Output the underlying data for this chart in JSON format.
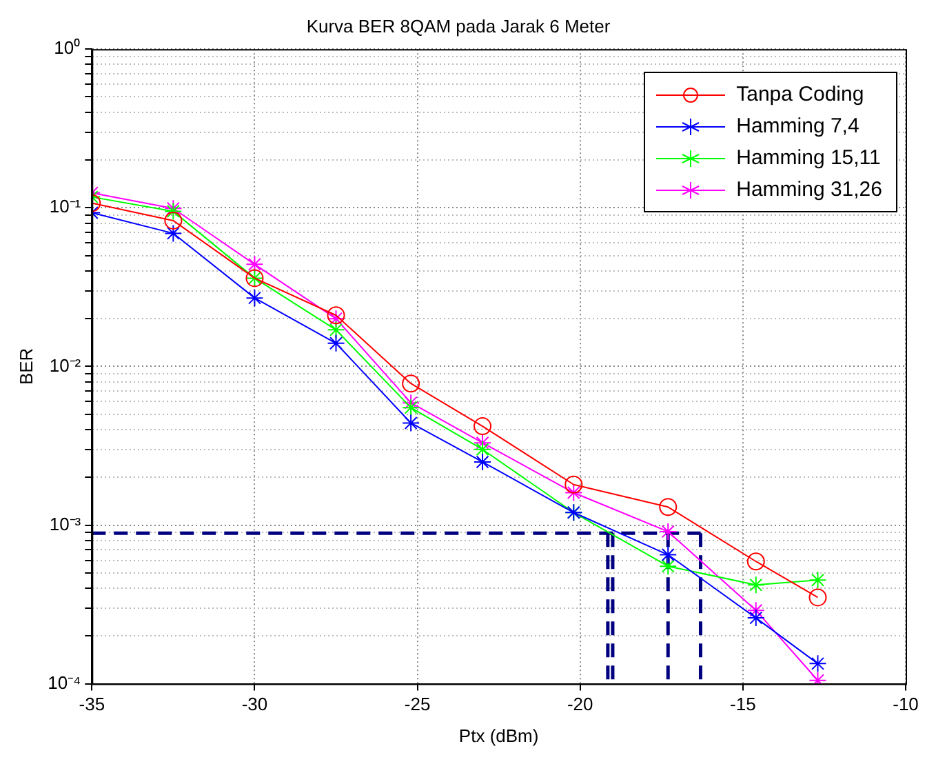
{
  "chart_data": {
    "type": "line",
    "title": "Kurva BER 8QAM pada Jarak 6 Meter",
    "xlabel": "Ptx (dBm)",
    "ylabel": "BER",
    "log": "y",
    "grid": true,
    "legend": "top right",
    "xlim": [
      -35,
      -10
    ],
    "xticks": [
      -35,
      -30,
      -25,
      -20,
      -15,
      -10
    ],
    "ylim": [
      0.0001,
      1
    ],
    "yticks": [
      {
        "value": 0.0001,
        "label": "10⁻⁴"
      },
      {
        "value": 0.0002,
        "label": null
      },
      {
        "value": 0.0003,
        "label": null
      },
      {
        "value": 0.0004,
        "label": null
      },
      {
        "value": 0.0005,
        "label": null
      },
      {
        "value": 0.0006,
        "label": null
      },
      {
        "value": 0.0007,
        "label": null
      },
      {
        "value": 0.0008,
        "label": null
      },
      {
        "value": 0.0009,
        "label": null
      },
      {
        "value": 0.001,
        "label": "10⁻³"
      },
      {
        "value": 0.002,
        "label": null
      },
      {
        "value": 0.003,
        "label": null
      },
      {
        "value": 0.004,
        "label": null
      },
      {
        "value": 0.005,
        "label": null
      },
      {
        "value": 0.006,
        "label": null
      },
      {
        "value": 0.007,
        "label": null
      },
      {
        "value": 0.008,
        "label": null
      },
      {
        "value": 0.009,
        "label": null
      },
      {
        "value": 0.01,
        "label": "10⁻²"
      },
      {
        "value": 0.02,
        "label": null
      },
      {
        "value": 0.03,
        "label": null
      },
      {
        "value": 0.04,
        "label": null
      },
      {
        "value": 0.05,
        "label": null
      },
      {
        "value": 0.06,
        "label": null
      },
      {
        "value": 0.07,
        "label": null
      },
      {
        "value": 0.08,
        "label": null
      },
      {
        "value": 0.09,
        "label": null
      },
      {
        "value": 0.1,
        "label": "10⁻¹"
      },
      {
        "value": 0.2,
        "label": null
      },
      {
        "value": 0.3,
        "label": null
      },
      {
        "value": 0.4,
        "label": null
      },
      {
        "value": 0.5,
        "label": null
      },
      {
        "value": 0.6,
        "label": null
      },
      {
        "value": 0.7,
        "label": null
      },
      {
        "value": 0.8,
        "label": null
      },
      {
        "value": 0.9,
        "label": null
      },
      {
        "value": 1,
        "label": "10⁰"
      }
    ],
    "x": [
      -35,
      -32.5,
      -30,
      -27.5,
      -25.2,
      -23,
      -20.2,
      -17.3,
      -14.6,
      -12.7
    ],
    "series": [
      {
        "name": "Tanpa Coding",
        "color": "#ff0000",
        "marker": "circle",
        "values": [
          0.107,
          0.083,
          0.036,
          0.021,
          0.0078,
          0.0042,
          0.0018,
          0.0013,
          0.00059,
          0.00035
        ]
      },
      {
        "name": "Hamming 7,4",
        "color": "#0000ff",
        "marker": "cross",
        "values": [
          0.093,
          0.069,
          0.027,
          0.014,
          0.0044,
          0.0025,
          0.0012,
          0.00065,
          0.00026,
          0.000134
        ]
      },
      {
        "name": "Hamming 15,11",
        "color": "#00ff00",
        "marker": "cross",
        "values": [
          0.117,
          0.095,
          0.036,
          0.017,
          0.0055,
          0.003,
          0.0012,
          0.00055,
          0.00042,
          0.00045
        ]
      },
      {
        "name": "Hamming 31,26",
        "color": "#ff00ff",
        "marker": "cross",
        "values": [
          0.124,
          0.099,
          0.044,
          0.02,
          0.0059,
          0.0033,
          0.0016,
          0.00091,
          0.00029,
          0.000105
        ]
      },
      {
        "color": "#000080",
        "marker": "none",
        "line_style": "dashed",
        "x": [
          -35,
          -16.3
        ],
        "values": [
          0.00089,
          0.00089
        ]
      },
      {
        "color": "#000080",
        "marker": "none",
        "line_style": "dashed",
        "x": [
          -19.15,
          -19.15
        ],
        "values": [
          0.00089,
          0.0001
        ]
      },
      {
        "color": "#000080",
        "marker": "none",
        "line_style": "dashed",
        "x": [
          -19,
          -19
        ],
        "values": [
          0.00089,
          0.0001
        ]
      },
      {
        "color": "#000080",
        "marker": "none",
        "line_style": "dashed",
        "x": [
          -17.3,
          -17.3
        ],
        "values": [
          0.00089,
          0.0001
        ]
      },
      {
        "color": "#000080",
        "marker": "none",
        "line_style": "dashed",
        "x": [
          -16.3,
          -16.3
        ],
        "values": [
          0.00089,
          0.0001
        ]
      }
    ]
  }
}
